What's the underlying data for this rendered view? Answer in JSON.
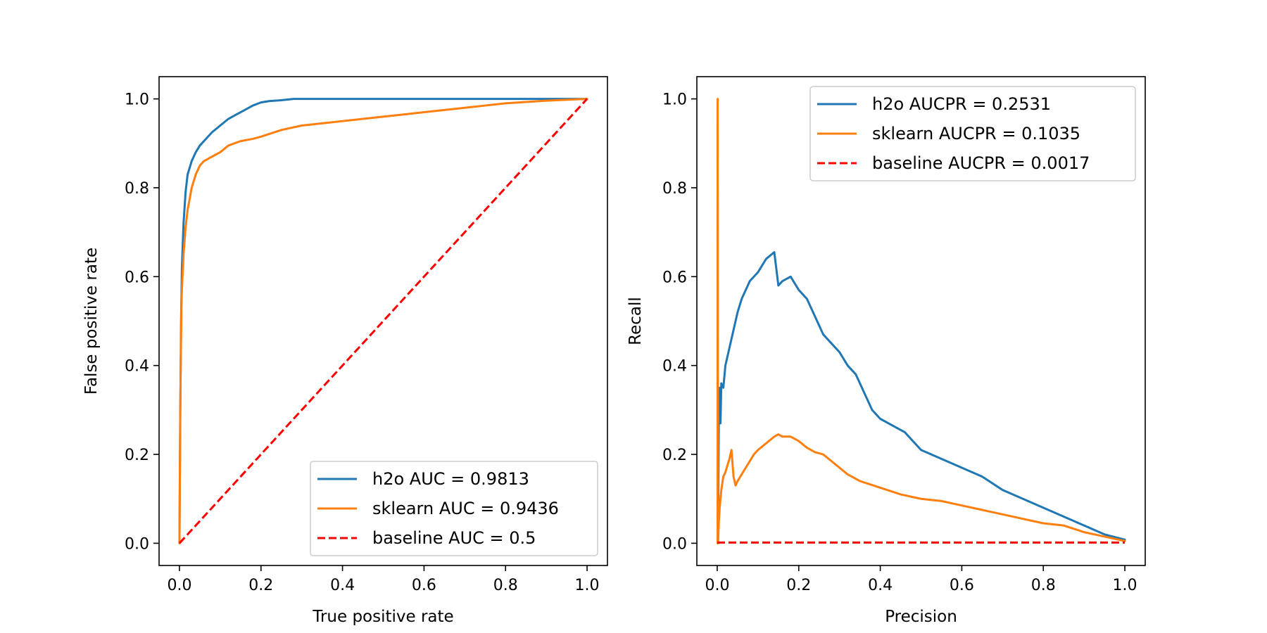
{
  "chart_data": [
    {
      "type": "line",
      "xlabel": "True positive rate",
      "ylabel": "False positive rate",
      "xlim": [
        -0.05,
        1.05
      ],
      "ylim": [
        -0.05,
        1.05
      ],
      "xticks": [
        "0.0",
        "0.2",
        "0.4",
        "0.6",
        "0.8",
        "1.0"
      ],
      "yticks": [
        "0.0",
        "0.2",
        "0.4",
        "0.6",
        "0.8",
        "1.0"
      ],
      "grid": false,
      "legend": "lower-right",
      "series": [
        {
          "name": "h2o AUC = 0.9813",
          "color": "#1f77b4",
          "dashed": false,
          "x": [
            0,
            0.002,
            0.004,
            0.006,
            0.01,
            0.015,
            0.02,
            0.03,
            0.04,
            0.05,
            0.06,
            0.08,
            0.1,
            0.12,
            0.14,
            0.16,
            0.18,
            0.2,
            0.22,
            0.25,
            0.28,
            0.3,
            0.4,
            0.6,
            0.8,
            1.0
          ],
          "y": [
            0,
            0.3,
            0.5,
            0.62,
            0.72,
            0.79,
            0.83,
            0.86,
            0.88,
            0.895,
            0.905,
            0.925,
            0.94,
            0.955,
            0.965,
            0.975,
            0.985,
            0.992,
            0.995,
            0.997,
            1.0,
            1.0,
            1.0,
            1.0,
            1.0,
            1.0
          ]
        },
        {
          "name": "sklearn AUC = 0.9436",
          "color": "#ff7f0e",
          "dashed": false,
          "x": [
            0,
            0.002,
            0.005,
            0.01,
            0.015,
            0.02,
            0.03,
            0.04,
            0.05,
            0.06,
            0.08,
            0.1,
            0.12,
            0.15,
            0.18,
            0.2,
            0.25,
            0.3,
            0.35,
            0.4,
            0.45,
            0.5,
            0.55,
            0.6,
            0.65,
            0.7,
            0.75,
            0.8,
            0.85,
            0.9,
            0.95,
            1.0
          ],
          "y": [
            0,
            0.3,
            0.55,
            0.65,
            0.71,
            0.75,
            0.8,
            0.83,
            0.85,
            0.86,
            0.87,
            0.88,
            0.895,
            0.905,
            0.91,
            0.915,
            0.93,
            0.94,
            0.945,
            0.95,
            0.955,
            0.96,
            0.965,
            0.97,
            0.975,
            0.98,
            0.985,
            0.99,
            0.993,
            0.996,
            0.998,
            1.0
          ]
        },
        {
          "name": "baseline AUC = 0.5",
          "color": "#ff0000",
          "dashed": true,
          "x": [
            0,
            1
          ],
          "y": [
            0,
            1
          ]
        }
      ]
    },
    {
      "type": "line",
      "xlabel": "Precision",
      "ylabel": "Recall",
      "xlim": [
        -0.05,
        1.05
      ],
      "ylim": [
        -0.05,
        1.05
      ],
      "xticks": [
        "0.0",
        "0.2",
        "0.4",
        "0.6",
        "0.8",
        "1.0"
      ],
      "yticks": [
        "0.0",
        "0.2",
        "0.4",
        "0.6",
        "0.8",
        "1.0"
      ],
      "grid": false,
      "legend": "upper-right",
      "series": [
        {
          "name": "h2o AUCPR = 0.2531",
          "color": "#1f77b4",
          "dashed": false,
          "x": [
            0.002,
            0.004,
            0.006,
            0.008,
            0.01,
            0.015,
            0.02,
            0.03,
            0.04,
            0.05,
            0.06,
            0.08,
            0.1,
            0.12,
            0.14,
            0.15,
            0.16,
            0.18,
            0.2,
            0.22,
            0.24,
            0.26,
            0.28,
            0.3,
            0.32,
            0.34,
            0.36,
            0.38,
            0.4,
            0.42,
            0.44,
            0.46,
            0.48,
            0.5,
            0.55,
            0.6,
            0.65,
            0.7,
            0.75,
            0.8,
            0.85,
            0.9,
            0.95,
            1.0
          ],
          "y": [
            0.0,
            0.3,
            0.35,
            0.27,
            0.36,
            0.35,
            0.4,
            0.44,
            0.48,
            0.52,
            0.55,
            0.59,
            0.61,
            0.64,
            0.655,
            0.58,
            0.59,
            0.6,
            0.57,
            0.55,
            0.51,
            0.47,
            0.45,
            0.43,
            0.4,
            0.38,
            0.34,
            0.3,
            0.28,
            0.27,
            0.26,
            0.25,
            0.23,
            0.21,
            0.19,
            0.17,
            0.15,
            0.12,
            0.1,
            0.08,
            0.06,
            0.04,
            0.02,
            0.008
          ]
        },
        {
          "name": "sklearn AUCPR = 0.1035",
          "color": "#ff7f0e",
          "dashed": false,
          "x": [
            0.001,
            0.001,
            0.002,
            0.004,
            0.006,
            0.01,
            0.015,
            0.02,
            0.03,
            0.035,
            0.04,
            0.045,
            0.05,
            0.07,
            0.09,
            0.1,
            0.12,
            0.14,
            0.15,
            0.16,
            0.18,
            0.2,
            0.22,
            0.24,
            0.26,
            0.28,
            0.3,
            0.32,
            0.35,
            0.4,
            0.45,
            0.5,
            0.55,
            0.6,
            0.65,
            0.7,
            0.75,
            0.8,
            0.85,
            0.9,
            0.95,
            1.0
          ],
          "y": [
            0.0,
            1.0,
            0.0,
            0.05,
            0.08,
            0.12,
            0.15,
            0.16,
            0.19,
            0.21,
            0.15,
            0.13,
            0.14,
            0.17,
            0.2,
            0.21,
            0.225,
            0.24,
            0.245,
            0.24,
            0.24,
            0.23,
            0.215,
            0.205,
            0.2,
            0.185,
            0.17,
            0.155,
            0.14,
            0.125,
            0.11,
            0.1,
            0.095,
            0.085,
            0.075,
            0.065,
            0.055,
            0.045,
            0.04,
            0.025,
            0.015,
            0.005
          ]
        },
        {
          "name": "baseline AUCPR = 0.0017",
          "color": "#ff0000",
          "dashed": true,
          "x": [
            0,
            1
          ],
          "y": [
            0.0017,
            0.0017
          ]
        }
      ]
    }
  ]
}
